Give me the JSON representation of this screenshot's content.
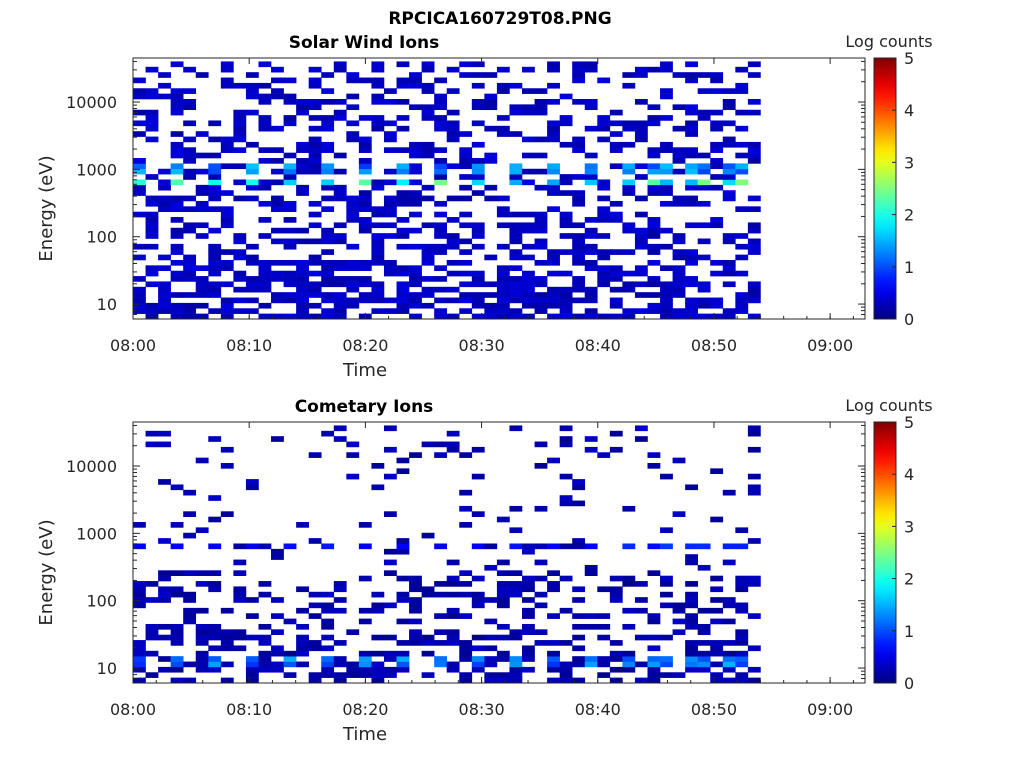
{
  "figure_title": "RPCICA160729T08.PNG",
  "chart_data": [
    {
      "type": "heatmap",
      "title": "Solar Wind Ions",
      "xlabel": "Time",
      "ylabel": "Energy (eV)",
      "x_ticks": [
        "08:00",
        "08:10",
        "08:20",
        "08:30",
        "08:40",
        "08:50",
        "09:00"
      ],
      "x_range": [
        "08:00",
        "09:03"
      ],
      "y_scale": "log",
      "y_ticks": [
        "10",
        "100",
        "1000",
        "10000"
      ],
      "y_range": [
        6,
        45000
      ],
      "colorbar": {
        "label": "Log counts",
        "ticks": [
          "0",
          "1",
          "2",
          "3",
          "4",
          "5"
        ],
        "range": [
          0,
          5
        ],
        "colormap": "jet"
      },
      "data_coverage": [
        "08:00",
        "08:54"
      ],
      "features": [
        {
          "energy_eV": 650,
          "peak_log_counts": 2.6,
          "period_min": 3.2
        },
        {
          "energy_eV": 1000,
          "peak_log_counts": 1.6,
          "period_min": 3.2
        }
      ],
      "background_log_counts": 0.2
    },
    {
      "type": "heatmap",
      "title": "Cometary Ions",
      "xlabel": "Time",
      "ylabel": "Energy (eV)",
      "x_ticks": [
        "08:00",
        "08:10",
        "08:20",
        "08:30",
        "08:40",
        "08:50",
        "09:00"
      ],
      "x_range": [
        "08:00",
        "09:03"
      ],
      "y_scale": "log",
      "y_ticks": [
        "10",
        "100",
        "1000",
        "10000"
      ],
      "y_range": [
        6,
        45000
      ],
      "colorbar": {
        "label": "Log counts",
        "ticks": [
          "0",
          "1",
          "2",
          "3",
          "4",
          "5"
        ],
        "range": [
          0,
          5
        ],
        "colormap": "jet"
      },
      "data_coverage": [
        "08:00",
        "08:54"
      ],
      "features": [
        {
          "energy_eV": 650,
          "peak_log_counts": 0.9,
          "period_min": 3.2
        },
        {
          "energy_eV": 12,
          "peak_log_counts": 1.5,
          "period_min": 3.2
        }
      ],
      "background_log_counts": 0.1
    }
  ]
}
